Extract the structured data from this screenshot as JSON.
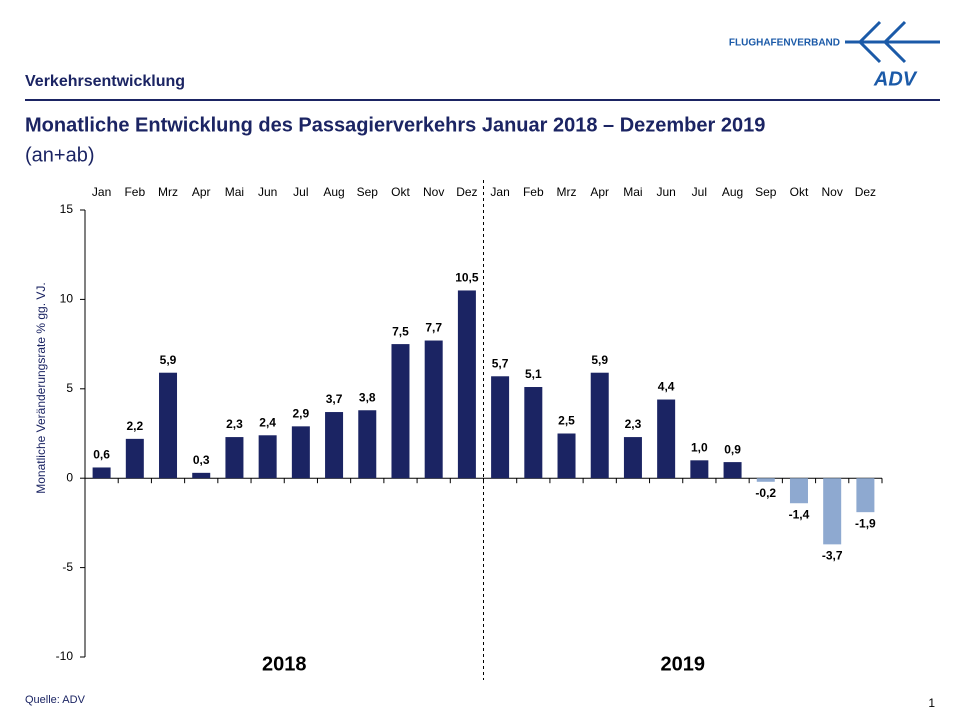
{
  "section": "Verkehrsentwicklung",
  "logo": {
    "name": "FLUGHAFENVERBAND",
    "mark": "ADV"
  },
  "source": "Quelle: ADV",
  "page_number": "1",
  "chart_data": {
    "type": "bar",
    "title": "Monatliche Entwicklung des Passagierverkehrs  Januar 2018 – Dezember 2019",
    "subtitle": "(an+ab)",
    "y_label": "Monatliche Veränderungsrate % gg. VJ.",
    "categories": [
      "Jan",
      "Feb",
      "Mrz",
      "Apr",
      "Mai",
      "Jun",
      "Jul",
      "Aug",
      "Sep",
      "Okt",
      "Nov",
      "Dez",
      "Jan",
      "Feb",
      "Mrz",
      "Apr",
      "Mai",
      "Jun",
      "Jul",
      "Aug",
      "Sep",
      "Okt",
      "Nov",
      "Dez"
    ],
    "group_labels": [
      "2018",
      "2019"
    ],
    "values": [
      0.6,
      2.2,
      5.9,
      0.3,
      2.3,
      2.4,
      2.9,
      3.7,
      3.8,
      7.5,
      7.7,
      10.5,
      5.7,
      5.1,
      2.5,
      5.9,
      2.3,
      4.4,
      1.0,
      0.9,
      -0.2,
      -1.4,
      -3.7,
      -1.9
    ],
    "value_labels": [
      "0,6",
      "2,2",
      "5,9",
      "0,3",
      "2,3",
      "2,4",
      "2,9",
      "3,7",
      "3,8",
      "7,5",
      "7,7",
      "10,5",
      "5,7",
      "5,1",
      "2,5",
      "5,9",
      "2,3",
      "4,4",
      "1,0",
      "0,9",
      "-0,2",
      "-1,4",
      "-3,7",
      "-1,9"
    ],
    "color": "#1b2463",
    "negative_color": "#8ea9d0",
    "ylim": [
      -10,
      15
    ],
    "yticks": [
      -10,
      -5,
      0,
      5,
      10,
      15
    ],
    "grid": false
  }
}
